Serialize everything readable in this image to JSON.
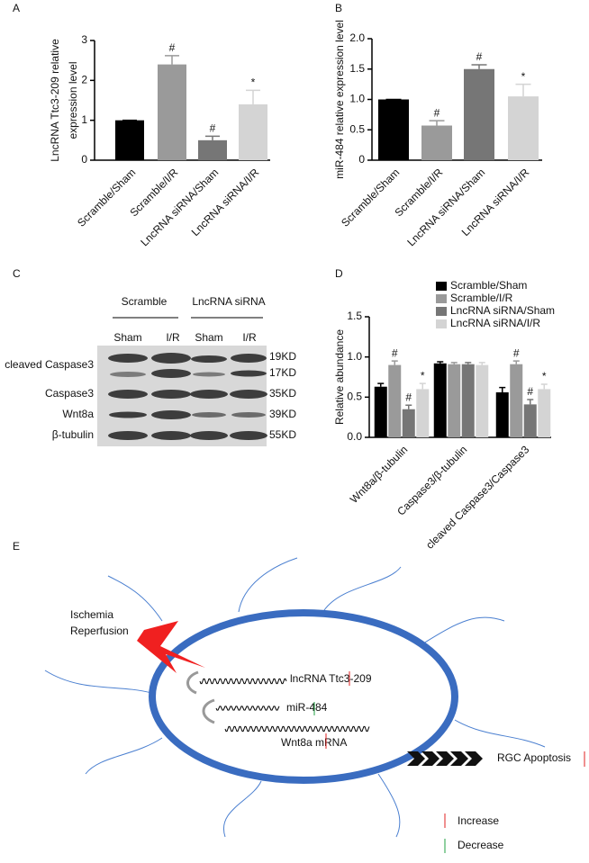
{
  "panel_letters": [
    "A",
    "B",
    "C",
    "D",
    "E"
  ],
  "chart_data": [
    {
      "type": "bar",
      "ylabel": [
        "LncRNA Ttc3-209 relative",
        "expression level"
      ],
      "categories": [
        "Scramble/Sham",
        "Scramble/I/R",
        "LncRNA siRNA/Sham",
        "LncRNA siRNA/I/R"
      ],
      "values": [
        1.0,
        2.4,
        0.5,
        1.4
      ],
      "errors": [
        0,
        0.22,
        0.1,
        0.35
      ],
      "annotations": [
        null,
        "#",
        "#",
        "*"
      ],
      "colors": [
        "#000000",
        "#9a9a9a",
        "#767676",
        "#d4d4d4"
      ],
      "ylim": [
        0,
        3
      ],
      "yticks": [
        0,
        1,
        2,
        3
      ]
    },
    {
      "type": "bar",
      "ylabel": [
        "miR-484 relative expression level"
      ],
      "categories": [
        "Scramble/Sham",
        "Scramble/I/R",
        "LncRNA siRNA/Sham",
        "LncRNA siRNA/I/R"
      ],
      "values": [
        1.0,
        0.57,
        1.5,
        1.05
      ],
      "errors": [
        0,
        0.08,
        0.07,
        0.2
      ],
      "annotations": [
        null,
        "#",
        "#",
        "*"
      ],
      "colors": [
        "#000000",
        "#9a9a9a",
        "#767676",
        "#d4d4d4"
      ],
      "ylim": [
        0,
        2
      ],
      "yticks": [
        0,
        0.5,
        {
          "value": 1,
          "label": "1.0"
        },
        1.5,
        {
          "value": 2,
          "label": "2.0"
        }
      ]
    },
    {
      "type": "grouped_bar",
      "ylabel": [
        "Relative abundance"
      ],
      "categories": [
        "Wnt8a/β-tubulin",
        "Caspase3/β-tubulin",
        "cleaved Caspase3/Caspase3"
      ],
      "series": [
        {
          "name": "Scramble/Sham",
          "color": "#000000",
          "values": [
            0.63,
            0.92,
            0.56
          ],
          "errors": [
            0.04,
            0.02,
            0.06
          ],
          "annotations": [
            null,
            null,
            null
          ]
        },
        {
          "name": "Scramble/I/R",
          "color": "#9a9a9a",
          "values": [
            0.9,
            0.91,
            0.91
          ],
          "errors": [
            0.05,
            0.02,
            0.04
          ],
          "annotations": [
            "#",
            null,
            "#"
          ]
        },
        {
          "name": "LncRNA siRNA/Sham",
          "color": "#767676",
          "values": [
            0.35,
            0.91,
            0.41
          ],
          "errors": [
            0.05,
            0.02,
            0.06
          ],
          "annotations": [
            "#",
            null,
            "#"
          ]
        },
        {
          "name": "LncRNA siRNA/I/R",
          "color": "#d4d4d4",
          "values": [
            0.6,
            0.9,
            0.6
          ],
          "errors": [
            0.07,
            0.03,
            0.06
          ],
          "annotations": [
            "*",
            null,
            "*"
          ]
        }
      ],
      "ylim": [
        0,
        1.5
      ],
      "yticks": [
        {
          "value": 0,
          "label": "0.0"
        },
        0.5,
        {
          "value": 1,
          "label": "1.0"
        },
        1.5
      ]
    }
  ],
  "blot": {
    "groups": [
      "Scramble",
      "LncRNA siRNA"
    ],
    "lanes": [
      "Sham",
      "I/R",
      "Sham",
      "I/R"
    ],
    "rows": [
      "cleaved Caspase3",
      "Caspase3",
      "Wnt8a",
      "β-tubulin"
    ],
    "sizes": [
      "19KD",
      "17KD",
      "35KD",
      "39KD",
      "55KD"
    ]
  },
  "diagram": {
    "stimulus": [
      "Ischemia",
      "Reperfusion"
    ],
    "lncrna": "lncRNA Ttc3-209",
    "mirna": "miR-484",
    "mrna": "Wnt8a mRNA",
    "outcome": "RGC Apoptosis",
    "legend": [
      "Increase",
      "Decrease"
    ]
  }
}
